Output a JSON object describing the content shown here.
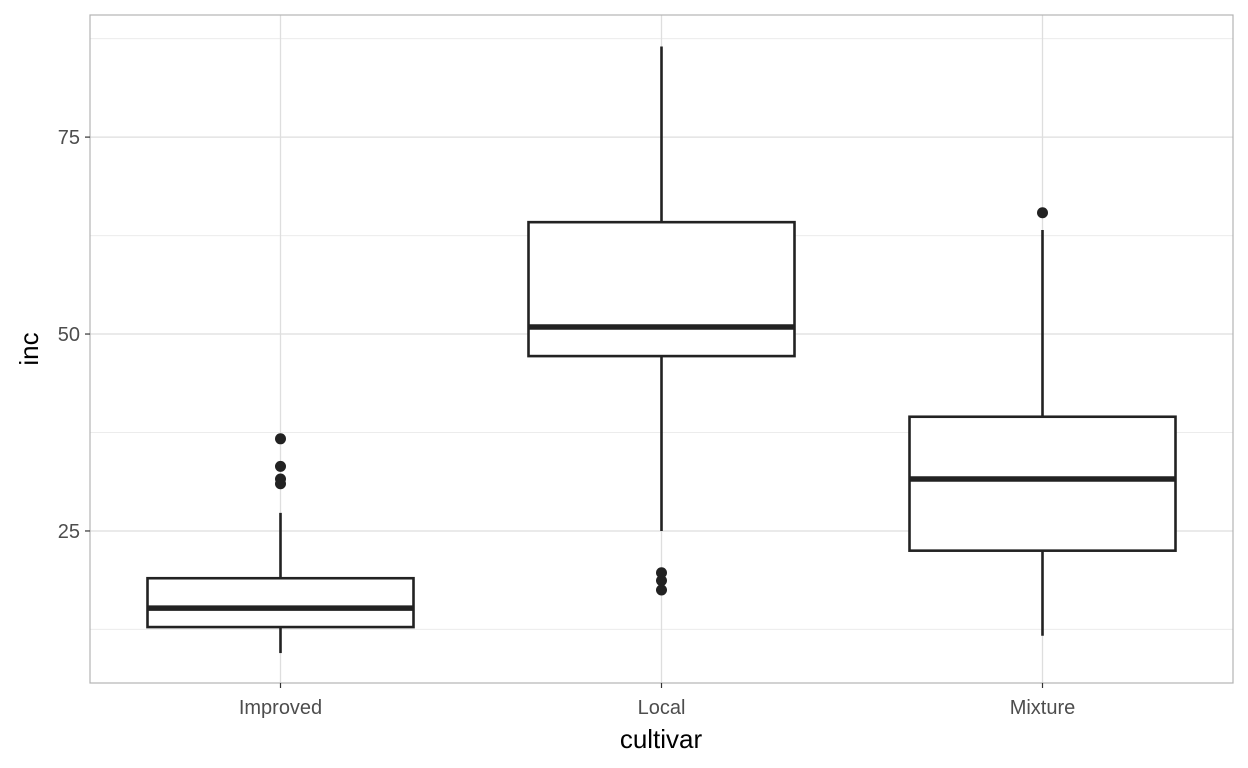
{
  "chart_data": {
    "type": "boxplot",
    "title": "",
    "xlabel": "cultivar",
    "ylabel": "inc",
    "ylim": [
      5.7,
      90.5
    ],
    "yticks": [
      25,
      50,
      75
    ],
    "yminor": [
      12.5,
      37.5,
      62.5,
      87.5
    ],
    "grid": true,
    "categories": [
      "Improved",
      "Local",
      "Mixture"
    ],
    "boxes": [
      {
        "category": "Improved",
        "whisker_low": 9.5,
        "q1": 12.8,
        "median": 15.2,
        "q3": 19.0,
        "whisker_high": 27.3,
        "outliers": [
          31.0,
          31.6,
          33.2,
          36.7
        ]
      },
      {
        "category": "Local",
        "whisker_low": 25.0,
        "q1": 47.2,
        "median": 50.9,
        "q3": 64.2,
        "whisker_high": 86.5,
        "outliers": [
          17.5,
          18.7,
          19.7
        ]
      },
      {
        "category": "Mixture",
        "whisker_low": 11.7,
        "q1": 22.5,
        "median": 31.6,
        "q3": 39.5,
        "whisker_high": 63.2,
        "outliers": [
          65.4
        ]
      }
    ],
    "colors": {
      "box": "#222222",
      "grid": "#dedede",
      "border": "#b3b3b3",
      "text": "#4d4d4d"
    }
  }
}
